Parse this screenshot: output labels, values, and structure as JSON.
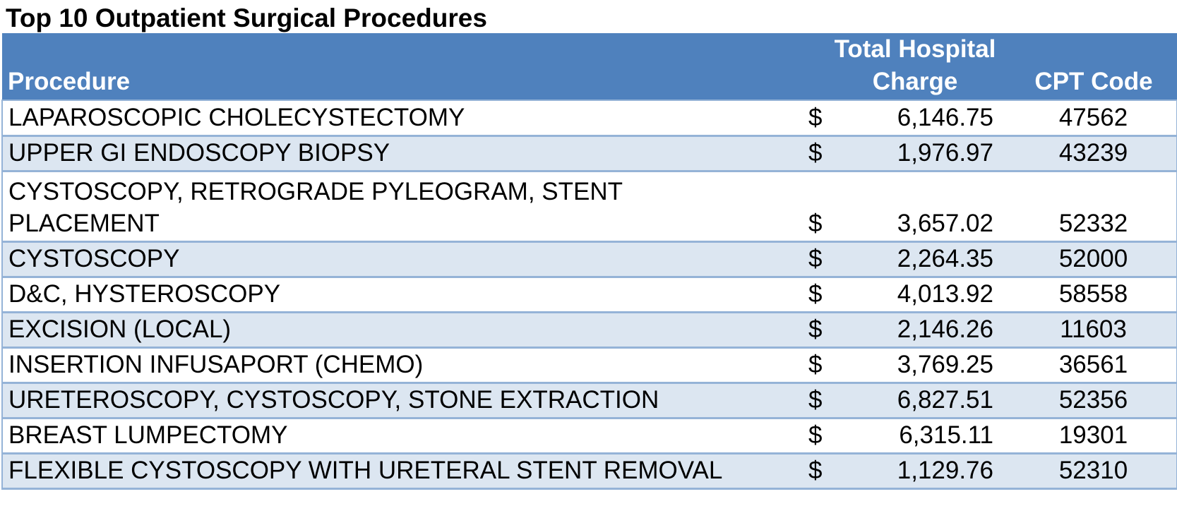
{
  "title": "Top 10 Outpatient Surgical Procedures",
  "headers": {
    "procedure": "Procedure",
    "charge_line1": "Total Hospital",
    "charge_line2": "Charge",
    "cpt": "CPT Code"
  },
  "currency_symbol": "$",
  "rows": [
    {
      "procedure": "LAPAROSCOPIC CHOLECYSTECTOMY",
      "charge": "6,146.75",
      "cpt": "47562"
    },
    {
      "procedure": "UPPER GI ENDOSCOPY BIOPSY",
      "charge": "1,976.97",
      "cpt": "43239"
    },
    {
      "procedure": "CYSTOSCOPY, RETROGRADE PYLEOGRAM, STENT PLACEMENT",
      "charge": "3,657.02",
      "cpt": "52332"
    },
    {
      "procedure": "CYSTOSCOPY",
      "charge": "2,264.35",
      "cpt": "52000"
    },
    {
      "procedure": "D&C, HYSTEROSCOPY",
      "charge": "4,013.92",
      "cpt": "58558"
    },
    {
      "procedure": "EXCISION (LOCAL)",
      "charge": "2,146.26",
      "cpt": "11603"
    },
    {
      "procedure": "INSERTION INFUSAPORT (CHEMO)",
      "charge": "3,769.25",
      "cpt": "36561"
    },
    {
      "procedure": "URETEROSCOPY, CYSTOSCOPY, STONE EXTRACTION",
      "charge": "6,827.51",
      "cpt": "52356"
    },
    {
      "procedure": "BREAST LUMPECTOMY",
      "charge": "6,315.11",
      "cpt": "19301"
    },
    {
      "procedure": "FLEXIBLE CYSTOSCOPY WITH URETERAL STENT REMOVAL",
      "charge": "1,129.76",
      "cpt": "52310"
    }
  ],
  "colors": {
    "header_background": "#4f81bd",
    "header_text": "#ffffff",
    "band_row": "#dce6f1",
    "grid_line": "#95b3d7"
  }
}
